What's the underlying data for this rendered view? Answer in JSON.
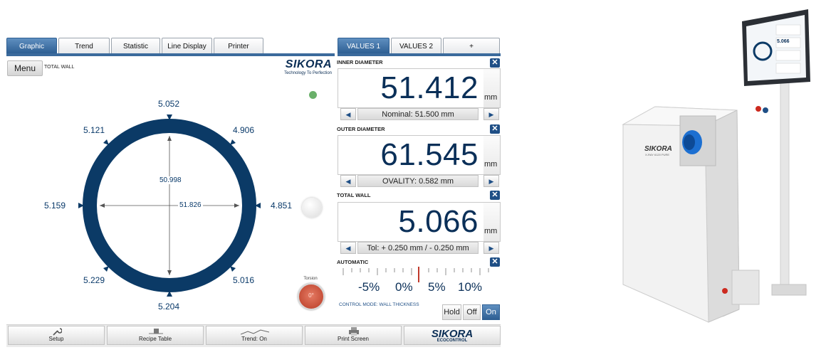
{
  "tabs_left": [
    "Graphic",
    "Trend",
    "Statistic",
    "Line Display",
    "Printer"
  ],
  "tabs_right": [
    "VALUES 1",
    "VALUES 2",
    "+"
  ],
  "menu_label": "Menu",
  "view_label": "TOTAL WALL",
  "brand": {
    "name": "SIKORA",
    "tagline": "Technology To Perfection"
  },
  "ring": {
    "labels": {
      "top": "5.052",
      "top_right": "4.906",
      "right": "4.851",
      "bottom_right": "5.016",
      "bottom": "5.204",
      "bottom_left": "5.229",
      "left": "5.159",
      "top_left": "5.121"
    },
    "vertical_dim": "50.998",
    "horizontal_dim": "51.826",
    "color": "#0b3a66"
  },
  "torsion": {
    "label": "Torsion",
    "value": "0°"
  },
  "panels": {
    "inner": {
      "title": "INNER DIAMETER",
      "value": "51.412",
      "unit": "mm",
      "nav": "Nominal: 51.500 mm"
    },
    "outer": {
      "title": "OUTER DIAMETER",
      "value": "61.545",
      "unit": "mm",
      "nav": "OVALITY: 0.582 mm"
    },
    "wall": {
      "title": "TOTAL WALL",
      "value": "5.066",
      "unit": "mm",
      "nav": "Tol: + 0.250 mm / - 0.250 mm"
    }
  },
  "automatic": {
    "title": "AUTOMATIC",
    "scale": [
      "-5%",
      "0%",
      "5%",
      "10%"
    ],
    "mode": "CONTROL MODE: WALL THICKNESS",
    "buttons": [
      "Hold",
      "Off",
      "On"
    ],
    "active_button": "On"
  },
  "toolbar": {
    "setup": "Setup",
    "recipe": "Recipe Table",
    "trend": "Trend: On",
    "print": "Print Screen",
    "brand": "SIKORA",
    "brand_sub": "ECOCONTROL"
  },
  "colors": {
    "accent": "#2e5f93",
    "value_text": "#0a2f58",
    "status_green": "#6ab06a"
  },
  "device": {
    "brand": "SIKORA",
    "model": "X-RAY 6120 PURE",
    "screen_value": "5.066"
  }
}
